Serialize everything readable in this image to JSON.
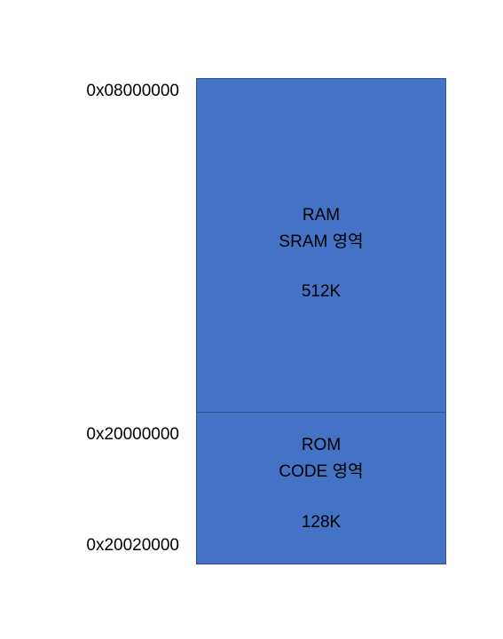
{
  "addresses": {
    "top": "0x08000000",
    "middle": "0x20000000",
    "bottom": "0x20020000"
  },
  "ram": {
    "name": "RAM",
    "subtitle": "SRAM 영역",
    "size": "512K",
    "fill_color": "#4472c4"
  },
  "rom": {
    "name": "ROM",
    "subtitle": "CODE 영역",
    "size": "128K",
    "fill_color": "#4472c4"
  }
}
